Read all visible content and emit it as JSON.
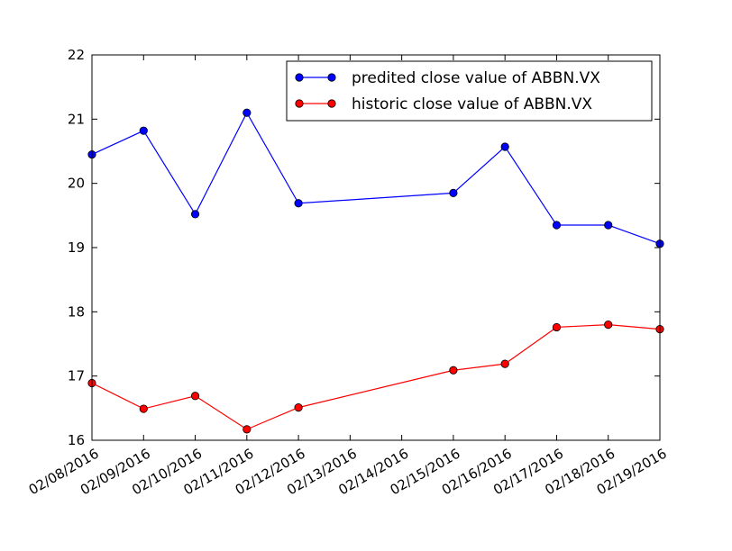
{
  "chart_data": {
    "type": "line",
    "x": [
      "02/08/2016",
      "02/09/2016",
      "02/10/2016",
      "02/11/2016",
      "02/12/2016",
      "02/15/2016",
      "02/16/2016",
      "02/17/2016",
      "02/18/2016",
      "02/19/2016"
    ],
    "x_ticks": [
      "02/08/2016",
      "02/09/2016",
      "02/10/2016",
      "02/11/2016",
      "02/12/2016",
      "02/13/2016",
      "02/14/2016",
      "02/15/2016",
      "02/16/2016",
      "02/17/2016",
      "02/18/2016",
      "02/19/2016"
    ],
    "xlim": [
      "02/08/2016",
      "02/19/2016"
    ],
    "ylim": [
      16,
      22
    ],
    "y_ticks": [
      16,
      17,
      18,
      19,
      20,
      21,
      22
    ],
    "grid": false,
    "legend_position": "top-right",
    "series": [
      {
        "name": "predited close value of ABBN.VX",
        "color": "#0000ff",
        "values": [
          20.45,
          20.82,
          19.52,
          21.1,
          19.69,
          19.85,
          20.57,
          19.35,
          19.35,
          19.06
        ]
      },
      {
        "name": "historic close value of ABBN.VX",
        "color": "#ff0000",
        "values": [
          16.89,
          16.49,
          16.69,
          16.17,
          16.51,
          17.09,
          17.19,
          17.76,
          17.8,
          17.73
        ]
      }
    ]
  }
}
